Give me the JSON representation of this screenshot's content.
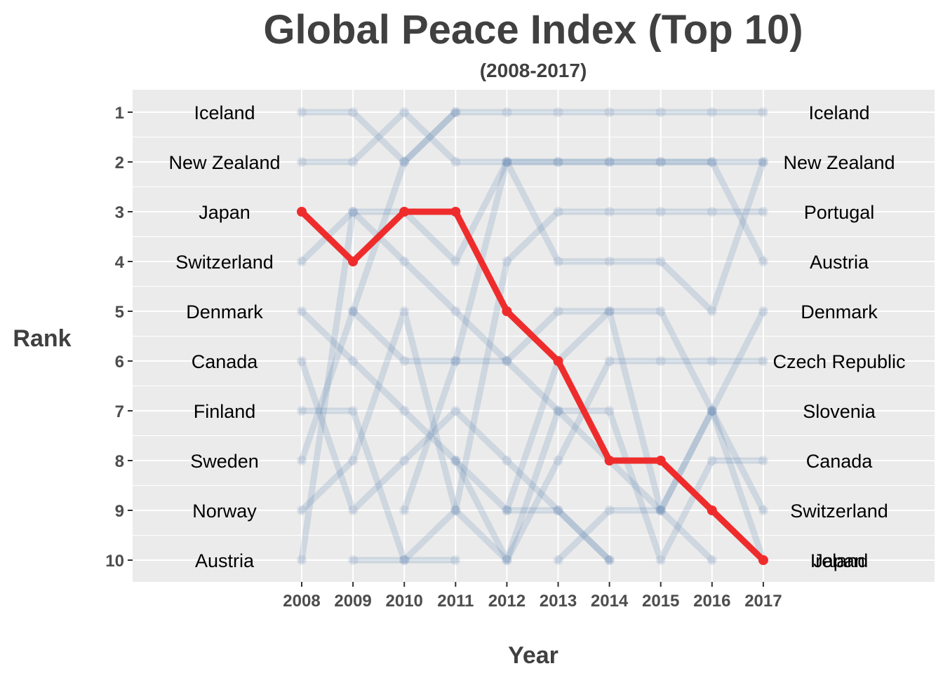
{
  "chart_data": {
    "type": "line",
    "title": "Global Peace Index (Top 10)",
    "subtitle": "(2008-2017)",
    "xlabel": "Year",
    "ylabel": "Rank",
    "years": [
      "2008",
      "2009",
      "2010",
      "2011",
      "2012",
      "2013",
      "2014",
      "2015",
      "2016",
      "2017"
    ],
    "ranks": [
      "1",
      "2",
      "3",
      "4",
      "5",
      "6",
      "7",
      "8",
      "9",
      "10"
    ],
    "ylim": [
      1,
      10
    ],
    "y_reversed": true,
    "grid": true,
    "legend": "none",
    "left_labels": [
      "Iceland",
      "New Zealand",
      "Japan",
      "Switzerland",
      "Denmark",
      "Canada",
      "Finland",
      "Sweden",
      "Norway",
      "Austria"
    ],
    "right_labels": [
      "Iceland",
      "New Zealand",
      "Portugal",
      "Austria",
      "Denmark",
      "Czech Republic",
      "Slovenia",
      "Canada",
      "Switzerland",
      "Japan",
      "Ireland"
    ],
    "highlight": {
      "name": "Japan",
      "color": "#ef2c2c",
      "ranks": [
        3,
        4,
        3,
        3,
        5,
        6,
        8,
        8,
        9,
        10
      ]
    },
    "background_series": [
      [
        1,
        1,
        2,
        1,
        1,
        1,
        1,
        1,
        1,
        1
      ],
      [
        2,
        2,
        1,
        2,
        2,
        2,
        2,
        2,
        2,
        4
      ],
      [
        4,
        3,
        4,
        5,
        6,
        7,
        8,
        9,
        10,
        null
      ],
      [
        5,
        6,
        7,
        8,
        9,
        9,
        10,
        null,
        null,
        null
      ],
      [
        6,
        9,
        8,
        7,
        8,
        9,
        10,
        null,
        null,
        null
      ],
      [
        7,
        7,
        10,
        10,
        null,
        null,
        null,
        null,
        null,
        null
      ],
      [
        8,
        5,
        2,
        1,
        null,
        null,
        null,
        null,
        null,
        null
      ],
      [
        9,
        8,
        5,
        9,
        10,
        8,
        6,
        6,
        6,
        6
      ],
      [
        10,
        3,
        3,
        4,
        2,
        2,
        2,
        2,
        2,
        2
      ],
      [
        null,
        10,
        10,
        9,
        4,
        3,
        3,
        3,
        3,
        3
      ],
      [
        null,
        5,
        6,
        6,
        6,
        5,
        5,
        5,
        7,
        9
      ],
      [
        null,
        null,
        9,
        6,
        2,
        4,
        4,
        4,
        5,
        2
      ],
      [
        null,
        null,
        null,
        8,
        10,
        7,
        7,
        10,
        8,
        8
      ],
      [
        null,
        null,
        null,
        null,
        9,
        6,
        5,
        9,
        7,
        10
      ],
      [
        null,
        null,
        null,
        null,
        null,
        10,
        9,
        9,
        7,
        5
      ]
    ]
  }
}
